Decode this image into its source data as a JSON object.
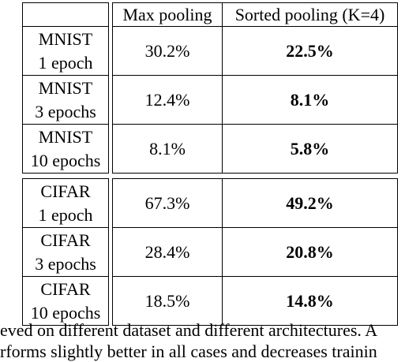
{
  "table": {
    "header": [
      "Max pooling",
      "Sorted pooling (K=4)"
    ],
    "rows": [
      {
        "dataset": "MNIST",
        "epochs": "1 epoch",
        "max": "30.2%",
        "sorted": "22.5%"
      },
      {
        "dataset": "MNIST",
        "epochs": "3 epochs",
        "max": "12.4%",
        "sorted": "8.1%"
      },
      {
        "dataset": "MNIST",
        "epochs": "10 epochs",
        "max": "8.1%",
        "sorted": "5.8%"
      },
      {
        "dataset": "CIFAR",
        "epochs": "1 epoch",
        "max": "67.3%",
        "sorted": "49.2%"
      },
      {
        "dataset": "CIFAR",
        "epochs": "3 epochs",
        "max": "28.4%",
        "sorted": "20.8%"
      },
      {
        "dataset": "CIFAR",
        "epochs": "10 epochs",
        "max": "18.5%",
        "sorted": "14.8%"
      }
    ]
  },
  "caption": [
    "eved on different dataset and different architectures. A",
    "rforms slightly better in all cases and decreases trainin"
  ]
}
